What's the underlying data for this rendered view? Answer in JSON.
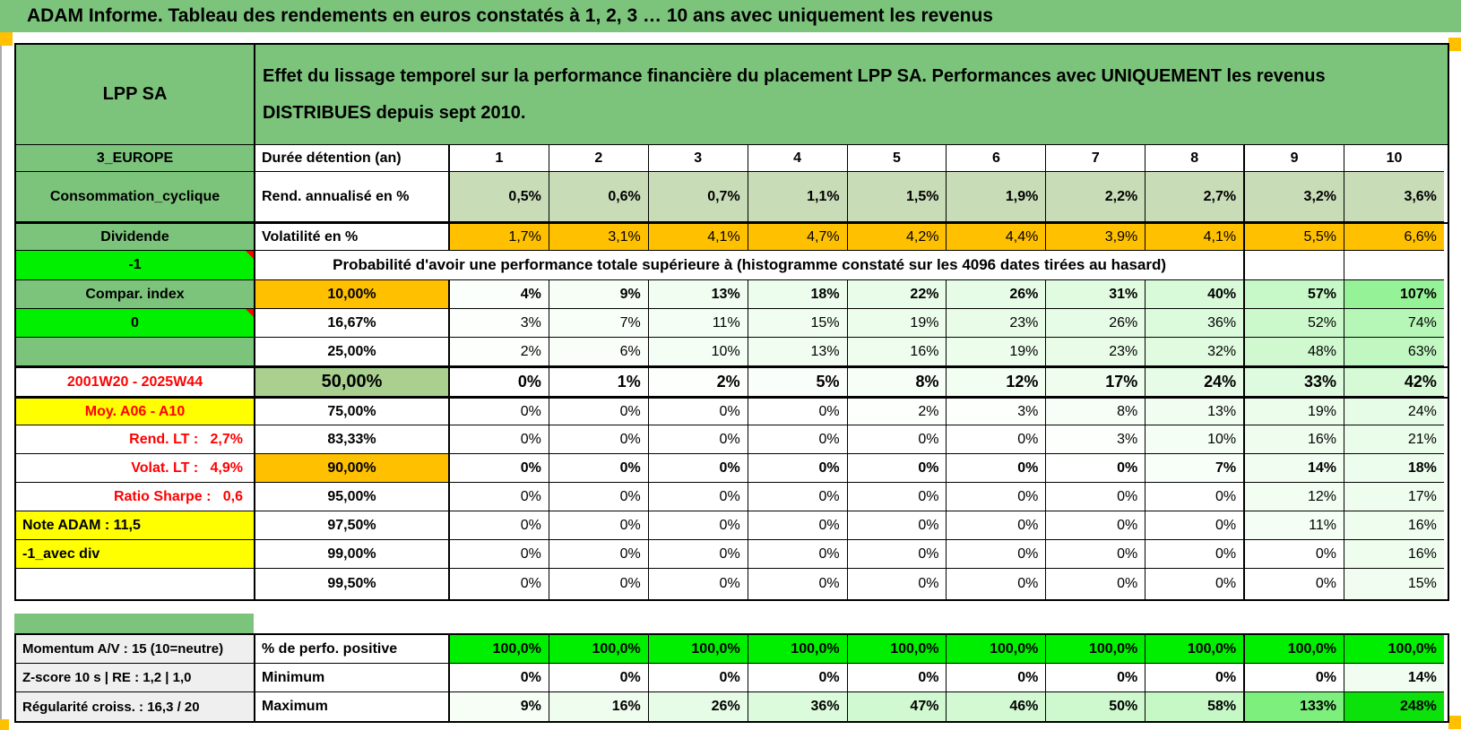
{
  "title": "ADAM Informe. Tableau des rendements en euros constatés à 1, 2, 3 … 10 ans avec uniquement les revenus",
  "header": {
    "name": "LPP SA",
    "desc_line1": "Effet du lissage temporel sur la performance financière du placement LPP SA. Performances avec UNIQUEMENT les revenus",
    "desc_line2": "DISTRIBUES depuis sept 2010."
  },
  "palette": {
    "band_green": "#7CC47C",
    "cell_green": "#7CC47C",
    "bright_green": "#00F000",
    "positive_green": "#00EE00",
    "sage": "#C9DCB8",
    "orange": "#FFC000",
    "yellow": "#FFFF00",
    "gray": "#EFEFEF",
    "mid_green": "#A9D08E",
    "red": "#FF0000",
    "corner_orange": "#FFC000",
    "scale_max": 250
  },
  "rows": [
    {
      "label": "3_EUROPE",
      "lbg": "green",
      "head": "Durée détention (an)",
      "hal": "left",
      "vals": [
        "1",
        "2",
        "3",
        "4",
        "5",
        "6",
        "7",
        "8",
        "9",
        "10"
      ],
      "vbg": "none",
      "vb": true,
      "val": "center"
    },
    {
      "label": "Consommation_cyclique",
      "lbg": "green",
      "head": "Rend. annualisé en %",
      "hal": "left",
      "vals": [
        "0,5%",
        "0,6%",
        "0,7%",
        "1,1%",
        "1,5%",
        "1,9%",
        "2,2%",
        "2,7%",
        "3,2%",
        "3,6%"
      ],
      "vbg": "sage",
      "vb": true
    },
    {
      "label": "Dividende",
      "lbg": "green",
      "head": "Volatilité en %",
      "hal": "left",
      "vals": [
        "1,7%",
        "3,1%",
        "4,1%",
        "4,7%",
        "4,2%",
        "4,4%",
        "3,9%",
        "4,1%",
        "5,5%",
        "6,6%"
      ],
      "vbg": "orange"
    },
    {
      "type": "proba",
      "label": "-1",
      "lbg": "bright",
      "tri": true,
      "text": "Probabilité d'avoir une performance totale supérieure à (histogramme constaté sur les 4096 dates tirées au hasard)"
    },
    {
      "label": "Compar. index",
      "lbg": "green",
      "head": "10,00%",
      "hbg": "orange",
      "vals": [
        "4%",
        "9%",
        "13%",
        "18%",
        "22%",
        "26%",
        "31%",
        "40%",
        "57%",
        "107%"
      ],
      "vbg": "scale",
      "vb": true
    },
    {
      "label": "0",
      "lbg": "bright",
      "tri": true,
      "head": "16,67%",
      "vals": [
        "3%",
        "7%",
        "11%",
        "15%",
        "19%",
        "23%",
        "26%",
        "36%",
        "52%",
        "74%"
      ],
      "vbg": "scale"
    },
    {
      "label": "",
      "lbg": "green",
      "head": "25,00%",
      "vals": [
        "2%",
        "6%",
        "10%",
        "13%",
        "16%",
        "19%",
        "23%",
        "32%",
        "48%",
        "63%"
      ],
      "vbg": "scale"
    },
    {
      "label": "2001W20 - 2025W44",
      "lcol": "red",
      "head": "50,00%",
      "hbg": "mgreen",
      "hsz": 20,
      "vals": [
        "0%",
        "1%",
        "2%",
        "5%",
        "8%",
        "12%",
        "17%",
        "24%",
        "33%",
        "42%"
      ],
      "vbg": "scale",
      "vb": true,
      "vsz": 18
    },
    {
      "label": "Moy. A06 - A10",
      "lbg": "yellow",
      "lcol": "red",
      "head": "75,00%",
      "vals": [
        "0%",
        "0%",
        "0%",
        "0%",
        "2%",
        "3%",
        "8%",
        "13%",
        "19%",
        "24%"
      ],
      "vbg": "scale"
    },
    {
      "label": "Rend. LT :   2,7%",
      "lcol": "red",
      "lal": "right",
      "head": "83,33%",
      "vals": [
        "0%",
        "0%",
        "0%",
        "0%",
        "0%",
        "0%",
        "3%",
        "10%",
        "16%",
        "21%"
      ],
      "vbg": "scale"
    },
    {
      "label": "Volat. LT :   4,9%",
      "lcol": "red",
      "lal": "right",
      "head": "90,00%",
      "hbg": "orange",
      "vals": [
        "0%",
        "0%",
        "0%",
        "0%",
        "0%",
        "0%",
        "0%",
        "7%",
        "14%",
        "18%"
      ],
      "vbg": "scale",
      "vb": true
    },
    {
      "label": "Ratio Sharpe :   0,6",
      "lcol": "red",
      "lal": "right",
      "head": "95,00%",
      "vals": [
        "0%",
        "0%",
        "0%",
        "0%",
        "0%",
        "0%",
        "0%",
        "0%",
        "12%",
        "17%"
      ],
      "vbg": "scale"
    },
    {
      "label": "Note ADAM : 11,5",
      "lbg": "yellow",
      "lal": "left",
      "head": "97,50%",
      "vals": [
        "0%",
        "0%",
        "0%",
        "0%",
        "0%",
        "0%",
        "0%",
        "0%",
        "11%",
        "16%"
      ],
      "vbg": "scale"
    },
    {
      "label": "-1_avec div",
      "lbg": "yellow",
      "lal": "left",
      "head": "99,00%",
      "vals": [
        "0%",
        "0%",
        "0%",
        "0%",
        "0%",
        "0%",
        "0%",
        "0%",
        "0%",
        "16%"
      ],
      "vbg": "scale"
    },
    {
      "label": "",
      "head": "99,50%",
      "vals": [
        "0%",
        "0%",
        "0%",
        "0%",
        "0%",
        "0%",
        "0%",
        "0%",
        "0%",
        "15%"
      ],
      "vbg": "scale"
    }
  ],
  "bottom_rows": [
    {
      "label": "Momentum A/V : 15 (10=neutre)",
      "lbg": "gray",
      "lal": "left",
      "head": "% de perfo. positive",
      "hal": "left",
      "vals": [
        "100,0%",
        "100,0%",
        "100,0%",
        "100,0%",
        "100,0%",
        "100,0%",
        "100,0%",
        "100,0%",
        "100,0%",
        "100,0%"
      ],
      "vbg": "positive",
      "vb": true
    },
    {
      "label": "Z-score 10 s | RE : 1,2 | 1,0",
      "lbg": "gray",
      "lal": "left",
      "head": "Minimum",
      "hal": "left",
      "vals": [
        "0%",
        "0%",
        "0%",
        "0%",
        "0%",
        "0%",
        "0%",
        "0%",
        "0%",
        "14%"
      ],
      "vbg": "scale",
      "vb": true
    },
    {
      "label": "Régularité croiss. : 16,3 / 20",
      "lbg": "gray",
      "lal": "left",
      "head": "Maximum",
      "hal": "left",
      "vals": [
        "9%",
        "16%",
        "26%",
        "36%",
        "47%",
        "46%",
        "50%",
        "58%",
        "133%",
        "248%"
      ],
      "vbg": "scale",
      "vb": true
    }
  ]
}
